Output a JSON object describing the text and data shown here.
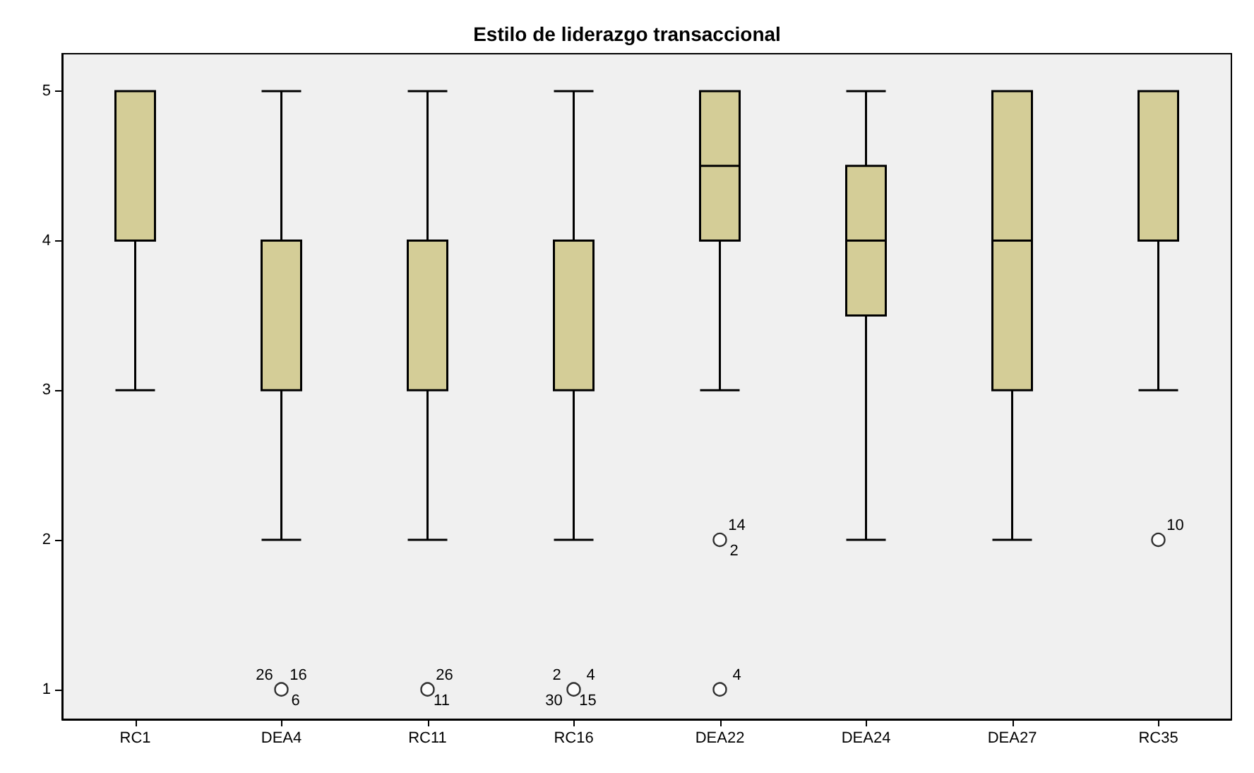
{
  "chart_data": {
    "type": "box",
    "title": "Estilo de liderazgo transaccional",
    "categories": [
      "RC1",
      "DEA4",
      "RC11",
      "RC16",
      "DEA22",
      "DEA24",
      "DEA27",
      "RC35"
    ],
    "series": [
      {
        "color": "#d4cd97",
        "boxes": [
          {
            "low": 3,
            "q1": 4,
            "median": 4,
            "q3": 5,
            "high": 5
          },
          {
            "low": 2,
            "q1": 3,
            "median": 4,
            "q3": 4,
            "high": 5
          },
          {
            "low": 2,
            "q1": 3,
            "median": 4,
            "q3": 4,
            "high": 5
          },
          {
            "low": 2,
            "q1": 3,
            "median": 3,
            "q3": 4,
            "high": 5
          },
          {
            "low": 3,
            "q1": 4,
            "median": 4.5,
            "q3": 5,
            "high": 5
          },
          {
            "low": 2,
            "q1": 3.5,
            "median": 4,
            "q3": 4.5,
            "high": 5
          },
          {
            "low": 2,
            "q1": 3,
            "median": 4,
            "q3": 5,
            "high": 5
          },
          {
            "low": 3,
            "q1": 4,
            "median": 5,
            "q3": 5,
            "high": 5
          }
        ]
      },
      {
        "type": "scatter",
        "color": "#ffffff",
        "x": [
          "DEA4",
          "RC11",
          "RC16",
          "DEA22",
          "DEA22",
          "RC35"
        ],
        "values": [
          1,
          1,
          1,
          2,
          1,
          2
        ]
      }
    ],
    "ylim": [
      0.8,
      5.25
    ],
    "yticks": [
      1,
      2,
      3,
      4,
      5
    ],
    "grid": false,
    "marker": "circle",
    "annotations": [
      {
        "text": "16",
        "x": "DEA4",
        "y": 1
      },
      {
        "text": "6",
        "x": "DEA4",
        "y": 1
      },
      {
        "text": "26",
        "x": "DEA4",
        "y": 1
      },
      {
        "text": "26",
        "x": "RC11",
        "y": 1
      },
      {
        "text": "11",
        "x": "RC11",
        "y": 1
      },
      {
        "text": "4",
        "x": "RC16",
        "y": 1
      },
      {
        "text": "15",
        "x": "RC16",
        "y": 1
      },
      {
        "text": "2",
        "x": "RC16",
        "y": 1
      },
      {
        "text": "30",
        "x": "RC16",
        "y": 1
      },
      {
        "text": "14",
        "x": "DEA22",
        "y": 2
      },
      {
        "text": "2",
        "x": "DEA22",
        "y": 2
      },
      {
        "text": "4",
        "x": "DEA22",
        "y": 1
      },
      {
        "text": "10",
        "x": "RC35",
        "y": 2
      }
    ]
  }
}
